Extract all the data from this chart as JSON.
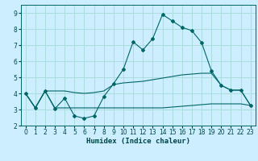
{
  "title": "",
  "xlabel": "Humidex (Indice chaleur)",
  "background_color": "#cceeff",
  "grid_color": "#aadddd",
  "line_color": "#006666",
  "xlim": [
    -0.5,
    23.5
  ],
  "ylim": [
    2,
    9.5
  ],
  "yticks": [
    2,
    3,
    4,
    5,
    6,
    7,
    8,
    9
  ],
  "xticks": [
    0,
    1,
    2,
    3,
    4,
    5,
    6,
    7,
    8,
    9,
    10,
    11,
    12,
    13,
    14,
    15,
    16,
    17,
    18,
    19,
    20,
    21,
    22,
    23
  ],
  "line1_x": [
    0,
    1,
    2,
    3,
    4,
    5,
    6,
    7,
    8,
    9,
    10,
    11,
    12,
    13,
    14,
    15,
    16,
    17,
    18,
    19,
    20,
    21,
    22,
    23
  ],
  "line1_y": [
    4.0,
    3.1,
    4.15,
    3.05,
    3.7,
    2.6,
    2.45,
    2.6,
    3.8,
    4.6,
    5.5,
    7.2,
    6.7,
    7.4,
    8.9,
    8.5,
    8.1,
    7.9,
    7.15,
    5.4,
    4.5,
    4.2,
    4.2,
    3.25
  ],
  "line2_x": [
    0,
    1,
    2,
    3,
    4,
    5,
    6,
    7,
    8,
    9,
    10,
    11,
    12,
    13,
    14,
    15,
    16,
    17,
    18,
    19,
    20,
    21,
    22,
    23
  ],
  "line2_y": [
    4.0,
    3.1,
    4.15,
    4.15,
    4.15,
    4.05,
    4.0,
    4.05,
    4.15,
    4.55,
    4.65,
    4.7,
    4.75,
    4.85,
    4.95,
    5.05,
    5.15,
    5.2,
    5.25,
    5.25,
    4.5,
    4.2,
    4.2,
    3.25
  ],
  "line3_x": [
    0,
    1,
    2,
    3,
    4,
    5,
    6,
    7,
    8,
    9,
    10,
    11,
    12,
    13,
    14,
    15,
    16,
    17,
    18,
    19,
    20,
    21,
    22,
    23
  ],
  "line3_y": [
    4.0,
    3.1,
    4.15,
    3.1,
    3.1,
    3.1,
    3.1,
    3.1,
    3.1,
    3.1,
    3.1,
    3.1,
    3.1,
    3.1,
    3.1,
    3.15,
    3.2,
    3.25,
    3.3,
    3.35,
    3.35,
    3.35,
    3.35,
    3.25
  ],
  "xlabel_fontsize": 6.5,
  "tick_fontsize": 5.5
}
